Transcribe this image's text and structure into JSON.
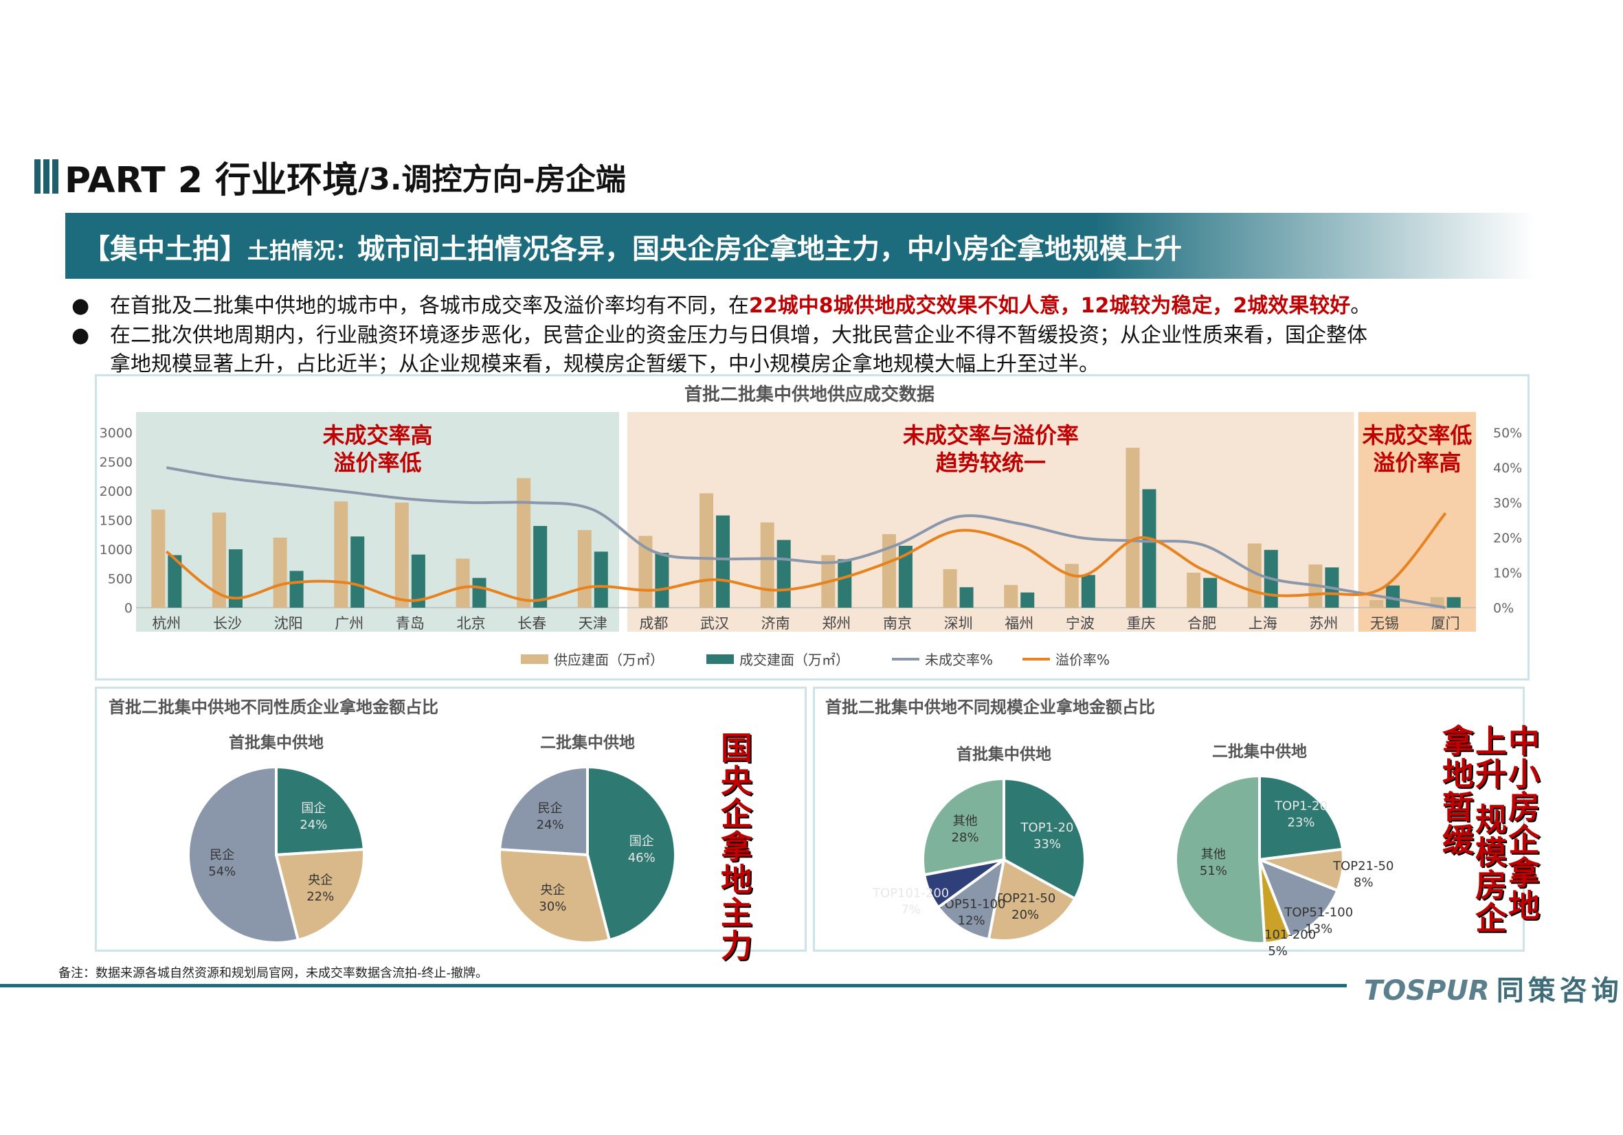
{
  "title": {
    "main": "PART 2 行业环境",
    "sub": "/3.调控方向-房企端"
  },
  "banner": {
    "tag": "【集中土拍】",
    "label": "土拍情况：",
    "headline": "城市间土拍情况各异，国央企房企拿地主力，中小房企拿地规模上升"
  },
  "bullets": [
    {
      "plain": "在首批及二批集中供地的城市中，各城市成交率及溢价率均有不同，在",
      "highlight": "22城中8城供地成交效果不如人意，12城较为稳定，2城效果较好",
      "end": "。"
    },
    {
      "line1": "在二批次供地周期内，行业融资环境逐步恶化，民营企业的资金压力与日俱增，大批民营企业不得不暂缓投资；从企业性质来看，国企整体",
      "line2": "拿地规模显著上升，占比近半；从企业规模来看，规模房企暂缓下，中小规模房企拿地规模大幅上升至过半。"
    }
  ],
  "colors": {
    "supply": "#d9b98a",
    "deal": "#2e7a73",
    "unsold": "#8a97ab",
    "premium": "#e8821e",
    "zone_green": "#d7e6e0",
    "zone_orange": "#f6e4d4",
    "zone_orange_dark": "#f7cfa8",
    "red": "#c00000"
  },
  "chart_data": [
    {
      "type": "bar",
      "title": "首批二批集中供地供应成交数据",
      "categories": [
        "杭州",
        "长沙",
        "沈阳",
        "广州",
        "青岛",
        "北京",
        "长春",
        "天津",
        "成都",
        "武汉",
        "济南",
        "郑州",
        "南京",
        "深圳",
        "福州",
        "宁波",
        "重庆",
        "合肥",
        "上海",
        "苏州",
        "无锡",
        "厦门"
      ],
      "series": [
        {
          "name": "供应建面（万㎡）",
          "kind": "bar",
          "axis": "left",
          "values": [
            1680,
            1630,
            1200,
            1820,
            1800,
            840,
            2220,
            1330,
            1230,
            1960,
            1460,
            900,
            1260,
            660,
            390,
            750,
            2740,
            600,
            1100,
            740,
            130,
            180
          ]
        },
        {
          "name": "成交建面（万㎡）",
          "kind": "bar",
          "axis": "left",
          "values": [
            900,
            1000,
            630,
            1220,
            910,
            510,
            1400,
            960,
            940,
            1580,
            1160,
            830,
            1060,
            350,
            260,
            560,
            2030,
            510,
            990,
            690,
            380,
            180
          ]
        },
        {
          "name": "未成交率%",
          "kind": "line",
          "axis": "right",
          "values": [
            40,
            37,
            35,
            33,
            31,
            30,
            30,
            28,
            16,
            14,
            14,
            13,
            18,
            26,
            24,
            20,
            19,
            18,
            9,
            6,
            3,
            0
          ]
        },
        {
          "name": "溢价率%",
          "kind": "line",
          "axis": "right",
          "values": [
            16,
            3,
            7,
            7,
            2,
            6,
            2,
            6,
            5,
            8,
            5,
            8,
            14,
            22,
            18,
            9,
            20,
            11,
            4,
            4,
            6,
            27
          ]
        }
      ],
      "left_axis": {
        "ylim": [
          0,
          3000
        ],
        "ticks": [
          "0",
          "500",
          "1000",
          "1500",
          "2000",
          "2500",
          "3000"
        ]
      },
      "right_axis": {
        "ylim": [
          0,
          50
        ],
        "ticks": [
          "0%",
          "10%",
          "20%",
          "30%",
          "40%",
          "50%"
        ]
      },
      "zones": [
        {
          "from": 0,
          "to": 7,
          "line1": "未成交率高",
          "line2": "溢价率低"
        },
        {
          "from": 8,
          "to": 19,
          "line1": "未成交率与溢价率",
          "line2": "趋势较统一"
        },
        {
          "from": 20,
          "to": 21,
          "line1": "未成交率低",
          "line2": "溢价率高"
        }
      ],
      "legend": "bottom"
    },
    {
      "type": "pie",
      "title": "首批二批集中供地不同性质企业拿地金额占比",
      "pies": [
        {
          "title": "首批集中供地",
          "slices": [
            {
              "label": "国企",
              "pct": "24%",
              "value": 24,
              "color": "#2e7a73"
            },
            {
              "label": "央企",
              "pct": "22%",
              "value": 22,
              "color": "#d9b98a"
            },
            {
              "label": "民企",
              "pct": "54%",
              "value": 54,
              "color": "#8a97ab"
            }
          ]
        },
        {
          "title": "二批集中供地",
          "slices": [
            {
              "label": "国企",
              "pct": "46%",
              "value": 46,
              "color": "#2e7a73"
            },
            {
              "label": "央企",
              "pct": "30%",
              "value": 30,
              "color": "#d9b98a"
            },
            {
              "label": "民企",
              "pct": "24%",
              "value": 24,
              "color": "#8a97ab"
            }
          ]
        }
      ],
      "callout": "国央企拿地主力"
    },
    {
      "type": "pie",
      "title": "首批二批集中供地不同规模企业拿地金额占比",
      "pies": [
        {
          "title": "首批集中供地",
          "slices": [
            {
              "label": "TOP1-20",
              "pct": "33%",
              "value": 33,
              "color": "#2e7a73"
            },
            {
              "label": "TOP21-50",
              "pct": "20%",
              "value": 20,
              "color": "#d9b98a"
            },
            {
              "label": "TOP51-100",
              "pct": "12%",
              "value": 12,
              "color": "#8a97ab"
            },
            {
              "label": "TOP101-200",
              "pct": "7%",
              "value": 7,
              "color": "#2f3f7a"
            },
            {
              "label": "其他",
              "pct": "28%",
              "value": 28,
              "color": "#7fb29a"
            }
          ]
        },
        {
          "title": "二批集中供地",
          "slices": [
            {
              "label": "TOP1-20",
              "pct": "23%",
              "value": 23,
              "color": "#2e7a73"
            },
            {
              "label": "TOP21-50",
              "pct": "8%",
              "value": 8,
              "color": "#d9b98a"
            },
            {
              "label": "TOP51-100",
              "pct": "13%",
              "value": 13,
              "color": "#8a97ab"
            },
            {
              "label": "TOP101-200",
              "pct": "5%",
              "value": 5,
              "color": "#c9a227"
            },
            {
              "label": "其他",
              "pct": "51%",
              "value": 51,
              "color": "#7fb29a"
            }
          ]
        }
      ],
      "callout": "中小房企拿地上升 规模房企拿地暂缓"
    }
  ],
  "footer": {
    "note": "备注：数据来源各城自然资源和规划局官网，未成交率数据含流拍-终止-撤牌。",
    "logo": "TOSPUR",
    "logo_cn": "同策咨询"
  }
}
